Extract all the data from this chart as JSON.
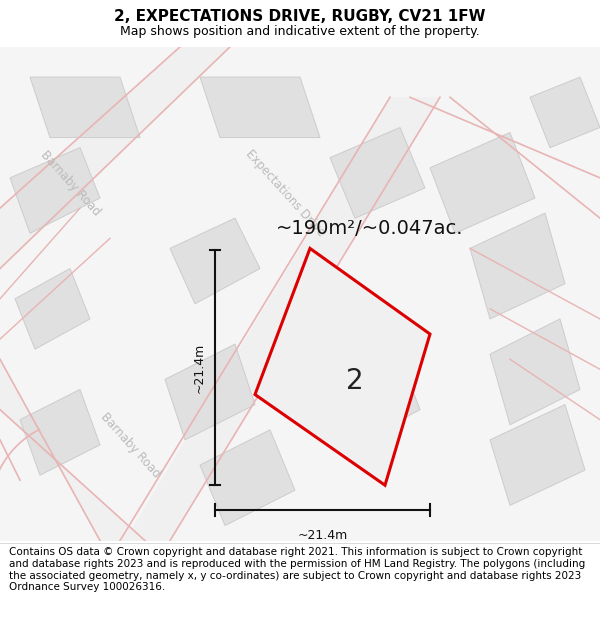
{
  "title": "2, EXPECTATIONS DRIVE, RUGBY, CV21 1FW",
  "subtitle": "Map shows position and indicative extent of the property.",
  "footer": "Contains OS data © Crown copyright and database right 2021. This information is subject to Crown copyright and database rights 2023 and is reproduced with the permission of HM Land Registry. The polygons (including the associated geometry, namely x, y co-ordinates) are subject to Crown copyright and database rights 2023 Ordnance Survey 100026316.",
  "area_label": "~190m²/~0.047ac.",
  "dim_h": "~21.4m",
  "dim_w": "~21.4m",
  "plot_number": "2",
  "map_bg": "#f7f7f7",
  "road_color": "#e8b4b4",
  "building_fill": "#e0e0e0",
  "building_edge": "#cccccc",
  "plot_color": "#dd0000",
  "plot_fill": "#f0f0f0",
  "dim_line_color": "#111111",
  "street_label_color": "#bbbbbb",
  "title_fontsize": 11,
  "subtitle_fontsize": 9,
  "footer_fontsize": 7.5,
  "area_fontsize": 14
}
